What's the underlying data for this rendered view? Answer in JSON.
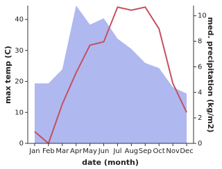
{
  "chart_data": {
    "type": "line",
    "x_label": "date (month)",
    "y_label": "max temp (C)",
    "y2_label": "med. precipitation (kg/m2)",
    "categories": [
      "Jan",
      "Feb",
      "Mar",
      "Apr",
      "May",
      "Jun",
      "Jul",
      "Aug",
      "Sep",
      "Oct",
      "Nov",
      "Dec"
    ],
    "ylim": [
      0,
      44.5
    ],
    "yticks": [
      0,
      10,
      20,
      30,
      40
    ],
    "y2lim": [
      0,
      10.8
    ],
    "y2ticks": [
      0,
      2,
      4,
      6,
      8,
      10
    ],
    "series": [
      {
        "name": "max temp (C)",
        "color": "#c4505e",
        "values": [
          3.8,
          0,
          12.7,
          22.8,
          31.7,
          32.8,
          44,
          43,
          44,
          37,
          19.4,
          10
        ]
      },
      {
        "name": "med. precipitation (kg/m2)",
        "color": "#b0b8f0",
        "axis": "y2",
        "values": [
          4.7,
          4.7,
          5.8,
          10.8,
          9.3,
          9.8,
          8.2,
          7.4,
          6.3,
          5.9,
          4.4,
          3.9
        ]
      }
    ]
  }
}
